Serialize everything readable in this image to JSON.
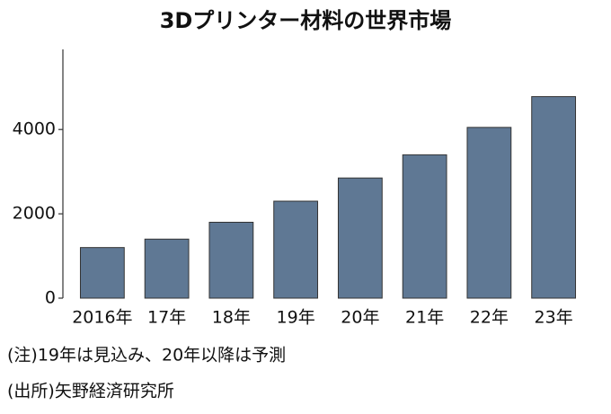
{
  "chart_data": {
    "type": "bar",
    "title": "3Dプリンター材料の世界市場",
    "categories": [
      "2016年",
      "17年",
      "18年",
      "19年",
      "20年",
      "21年",
      "22年",
      "23年"
    ],
    "values": [
      1200,
      1400,
      1800,
      2300,
      2850,
      3400,
      4050,
      4780
    ],
    "color": "#5f7894",
    "ylim": [
      0,
      5900
    ],
    "yticks": [
      0,
      2000,
      4000
    ],
    "notes": [
      "(注)19年は見込み、20年以降は予測",
      "(出所)矢野経済研究所"
    ]
  }
}
